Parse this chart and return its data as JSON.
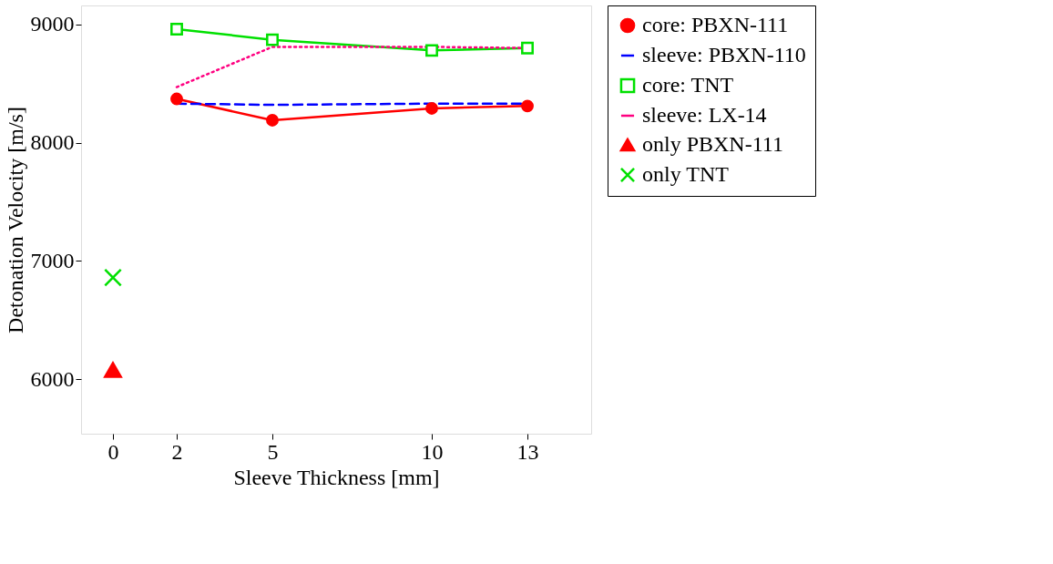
{
  "chart_data": {
    "type": "line",
    "xlabel": "Sleeve Thickness [mm]",
    "ylabel": "Detonation Velocity [m/s]",
    "x": [
      2,
      5,
      10,
      13
    ],
    "xlim": [
      -1,
      15
    ],
    "xticks": [
      0,
      2,
      5,
      10,
      13
    ],
    "ylim": [
      5540,
      9160
    ],
    "yticks": [
      6000,
      7000,
      8000,
      9000
    ],
    "grid": false,
    "legend": "right",
    "series": [
      {
        "name": "core: PBXN-111",
        "color": "#ff0000",
        "values": [
          8370,
          8190,
          8290,
          8310
        ],
        "marker": "circle",
        "line_style": "solid"
      },
      {
        "name": "sleeve: PBXN-110",
        "color": "#0000ff",
        "values": [
          8330,
          8320,
          8330,
          8330
        ],
        "marker": "none",
        "line_style": "dashed"
      },
      {
        "name": "core: TNT",
        "color": "#00e000",
        "values": [
          8960,
          8870,
          8780,
          8800
        ],
        "marker": "square",
        "line_style": "solid"
      },
      {
        "name": "sleeve: LX-14",
        "color": "#ff0080",
        "values": [
          8470,
          8810,
          8810,
          8800
        ],
        "marker": "none",
        "line_style": "dotted"
      },
      {
        "name": "only PBXN-111",
        "type": "scatter",
        "color": "#ff0000",
        "x": [
          0
        ],
        "values": [
          6080
        ],
        "marker": "triangle"
      },
      {
        "name": "only TNT",
        "type": "scatter",
        "color": "#00e000",
        "x": [
          0
        ],
        "values": [
          6860
        ],
        "marker": "cross"
      }
    ]
  }
}
